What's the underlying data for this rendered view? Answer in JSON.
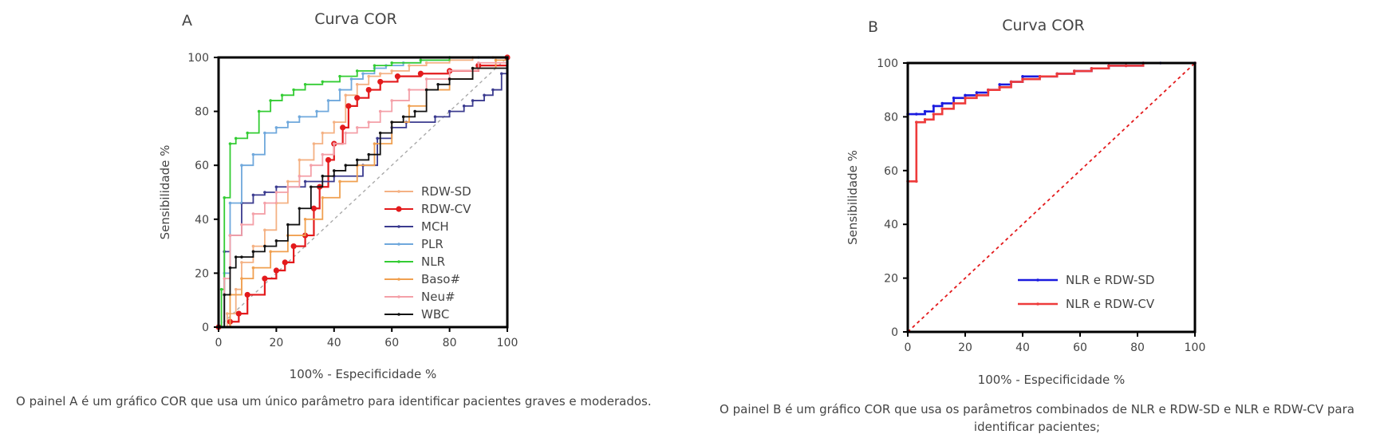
{
  "colors": {
    "RDW-SD": "#f4b183",
    "RDW-CV": "#e31a1c",
    "MCH": "#3b3b8f",
    "PLR": "#6fa8dc",
    "NLR": "#33cc33",
    "Baso#": "#f0a050",
    "Neu#": "#f4a0a8",
    "WBC": "#111111",
    "NLR e RDW-SD": "#1a1adf",
    "NLR e RDW-CV": "#ee3b3b",
    "reference": "#e31a1c"
  },
  "captions": {
    "a": "O painel A é um gráfico COR que usa um único parâmetro para identificar pacientes graves e moderados.",
    "b": "O painel B é um gráfico COR que usa os parâmetros combinados de NLR e RDW-SD e NLR e RDW-CV para identificar pacientes;"
  },
  "chart_data": [
    {
      "panel_label": "A",
      "type": "line",
      "title": "Curva COR",
      "xlabel": "100% - Especificidade %",
      "ylabel": "Sensibilidade %",
      "xlim": [
        0,
        100
      ],
      "ylim": [
        0,
        100
      ],
      "xticks": [
        0,
        20,
        40,
        60,
        80,
        100
      ],
      "yticks": [
        0,
        20,
        40,
        60,
        80,
        100
      ],
      "legend_position": "lower-right",
      "reference_line": "diagonal",
      "series": [
        {
          "name": "RDW-SD",
          "marker": "dot",
          "x": [
            0,
            3,
            6,
            8,
            12,
            16,
            20,
            24,
            28,
            33,
            36,
            40,
            44,
            48,
            52,
            56,
            60,
            66,
            72,
            80,
            88,
            95,
            100
          ],
          "y": [
            0,
            5,
            14,
            24,
            30,
            36,
            46,
            54,
            62,
            68,
            72,
            76,
            86,
            90,
            93,
            94,
            95,
            97,
            98,
            99,
            100,
            100,
            100
          ]
        },
        {
          "name": "RDW-CV",
          "marker": "circle",
          "x": [
            0,
            4,
            7,
            10,
            16,
            20,
            23,
            26,
            30,
            33,
            35,
            38,
            40,
            43,
            45,
            48,
            52,
            56,
            62,
            70,
            80,
            90,
            100
          ],
          "y": [
            0,
            2,
            5,
            12,
            18,
            21,
            24,
            30,
            34,
            44,
            52,
            62,
            68,
            74,
            82,
            85,
            88,
            91,
            93,
            94,
            95,
            97,
            100
          ]
        },
        {
          "name": "MCH",
          "marker": "dot",
          "x": [
            0,
            2,
            4,
            8,
            12,
            16,
            20,
            30,
            40,
            50,
            55,
            60,
            65,
            75,
            80,
            85,
            88,
            92,
            95,
            98,
            100
          ],
          "y": [
            0,
            28,
            34,
            46,
            49,
            50,
            52,
            54,
            56,
            60,
            70,
            74,
            76,
            78,
            80,
            82,
            84,
            86,
            88,
            94,
            100
          ]
        },
        {
          "name": "PLR",
          "marker": "dot",
          "x": [
            0,
            2,
            4,
            8,
            12,
            16,
            20,
            24,
            28,
            34,
            38,
            42,
            46,
            50,
            54,
            58,
            64,
            70,
            80,
            90,
            100
          ],
          "y": [
            0,
            20,
            46,
            60,
            64,
            72,
            74,
            76,
            78,
            80,
            84,
            88,
            92,
            94,
            96,
            97,
            98,
            99,
            100,
            100,
            100
          ]
        },
        {
          "name": "NLR",
          "marker": "dot",
          "x": [
            0,
            1,
            2,
            4,
            6,
            10,
            14,
            18,
            22,
            26,
            30,
            36,
            42,
            48,
            54,
            60,
            70,
            80,
            100
          ],
          "y": [
            0,
            14,
            48,
            68,
            70,
            72,
            80,
            84,
            86,
            88,
            90,
            91,
            93,
            95,
            97,
            98,
            99,
            100,
            100
          ]
        },
        {
          "name": "Baso#",
          "marker": "dot",
          "x": [
            0,
            4,
            8,
            12,
            18,
            24,
            30,
            36,
            42,
            48,
            54,
            60,
            66,
            72,
            80,
            88,
            96,
            100
          ],
          "y": [
            0,
            12,
            18,
            22,
            28,
            34,
            40,
            48,
            54,
            60,
            68,
            76,
            82,
            88,
            92,
            96,
            99,
            100
          ]
        },
        {
          "name": "Neu#",
          "marker": "dot",
          "x": [
            0,
            2,
            4,
            8,
            12,
            16,
            20,
            24,
            28,
            32,
            36,
            40,
            44,
            48,
            52,
            56,
            60,
            66,
            72,
            80,
            90,
            100
          ],
          "y": [
            0,
            18,
            34,
            38,
            42,
            46,
            50,
            52,
            56,
            60,
            64,
            68,
            72,
            74,
            76,
            80,
            84,
            88,
            92,
            95,
            98,
            100
          ]
        },
        {
          "name": "WBC",
          "marker": "dot",
          "x": [
            0,
            2,
            4,
            6,
            8,
            12,
            16,
            20,
            24,
            28,
            32,
            36,
            40,
            44,
            48,
            52,
            56,
            60,
            64,
            68,
            72,
            76,
            80,
            88,
            100
          ],
          "y": [
            0,
            12,
            22,
            26,
            26,
            28,
            30,
            32,
            38,
            44,
            52,
            56,
            58,
            60,
            62,
            64,
            72,
            76,
            78,
            80,
            88,
            90,
            92,
            96,
            100
          ]
        }
      ]
    },
    {
      "panel_label": "B",
      "type": "line",
      "title": "Curva COR",
      "xlabel": "100% - Especificidade %",
      "ylabel": "Sensibilidade %",
      "xlim": [
        0,
        100
      ],
      "ylim": [
        0,
        100
      ],
      "xticks": [
        0,
        20,
        40,
        60,
        80,
        100
      ],
      "yticks": [
        0,
        20,
        40,
        60,
        80,
        100
      ],
      "legend_position": "lower-right",
      "reference_line": "diagonal",
      "series": [
        {
          "name": "NLR e RDW-SD",
          "marker": "dot",
          "x": [
            0,
            0,
            3,
            6,
            9,
            12,
            16,
            20,
            24,
            28,
            32,
            36,
            40,
            46,
            52,
            58,
            64,
            70,
            76,
            82,
            88,
            100
          ],
          "y": [
            0,
            81,
            81,
            82,
            84,
            85,
            87,
            88,
            89,
            90,
            92,
            93,
            95,
            95,
            96,
            97,
            98,
            99,
            99,
            100,
            100,
            100
          ]
        },
        {
          "name": "NLR e RDW-CV",
          "marker": "dot",
          "x": [
            0,
            0,
            3,
            3,
            6,
            9,
            12,
            16,
            20,
            24,
            28,
            32,
            36,
            40,
            46,
            52,
            58,
            64,
            70,
            76,
            82,
            100
          ],
          "y": [
            0,
            56,
            56,
            78,
            79,
            81,
            83,
            85,
            87,
            88,
            90,
            91,
            93,
            94,
            95,
            96,
            97,
            98,
            99,
            99,
            100,
            100
          ]
        }
      ]
    }
  ]
}
